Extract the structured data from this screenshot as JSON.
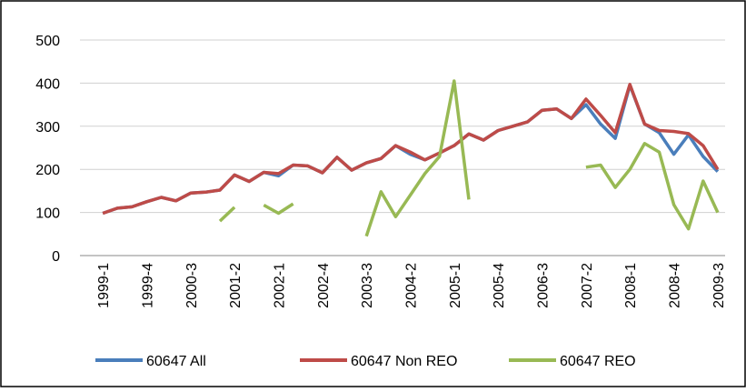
{
  "chart_data": {
    "type": "line",
    "categories": [
      "1999-1",
      null,
      null,
      "1999-4",
      null,
      null,
      "2000-3",
      null,
      null,
      "2001-2",
      null,
      null,
      "2002-1",
      null,
      null,
      "2002-4",
      null,
      null,
      "2003-3",
      null,
      null,
      "2004-2",
      null,
      null,
      "2005-1",
      null,
      null,
      "2005-4",
      null,
      null,
      "2006-3",
      null,
      null,
      "2007-2",
      null,
      null,
      "2008-1",
      null,
      null,
      "2008-4",
      null,
      null,
      "2009-3"
    ],
    "series": [
      {
        "name": "60647 All",
        "color": "#4a7ebb",
        "values": [
          98,
          110,
          113,
          125,
          135,
          127,
          145,
          147,
          152,
          187,
          172,
          193,
          185,
          210,
          208,
          192,
          228,
          198,
          215,
          225,
          255,
          235,
          222,
          238,
          255,
          282,
          268,
          290,
          300,
          310,
          337,
          340,
          318,
          350,
          305,
          272,
          395,
          305,
          285,
          235,
          280,
          230,
          195
        ]
      },
      {
        "name": "60647 Non REO",
        "color": "#be4b48",
        "values": [
          98,
          110,
          113,
          125,
          135,
          127,
          145,
          147,
          152,
          187,
          172,
          193,
          190,
          210,
          208,
          192,
          228,
          198,
          215,
          225,
          255,
          240,
          222,
          238,
          255,
          282,
          268,
          290,
          300,
          310,
          337,
          340,
          318,
          363,
          325,
          285,
          397,
          305,
          290,
          288,
          283,
          255,
          200
        ]
      },
      {
        "name": "60647 REO",
        "color": "#98b954",
        "values": [
          null,
          null,
          null,
          null,
          null,
          null,
          null,
          null,
          80,
          112,
          null,
          117,
          98,
          120,
          null,
          null,
          null,
          null,
          45,
          148,
          90,
          140,
          190,
          230,
          405,
          130,
          null,
          null,
          null,
          null,
          null,
          null,
          null,
          205,
          210,
          158,
          200,
          260,
          240,
          118,
          62,
          173,
          100
        ]
      }
    ],
    "ylim": [
      0,
      500
    ],
    "yticks": [
      0,
      100,
      200,
      300,
      400,
      500
    ],
    "grid": true,
    "legend": "bottom"
  }
}
